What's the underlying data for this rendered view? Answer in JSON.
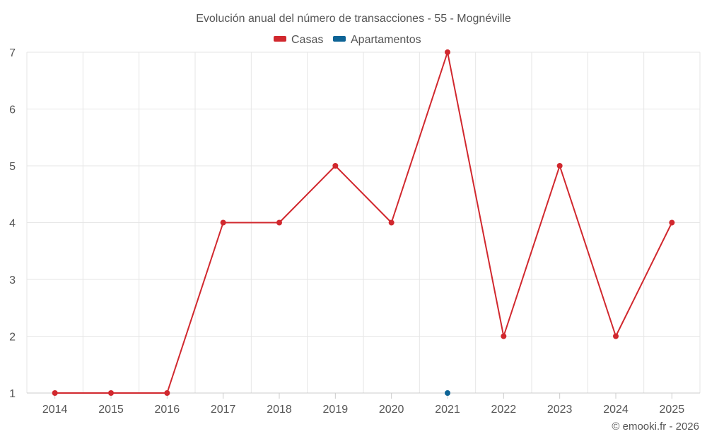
{
  "chart_data": {
    "type": "line",
    "title": "Evolución anual del número de transacciones - 55 - Mognéville",
    "categories": [
      "2014",
      "2015",
      "2016",
      "2017",
      "2018",
      "2019",
      "2020",
      "2021",
      "2022",
      "2023",
      "2024",
      "2025"
    ],
    "series": [
      {
        "name": "Casas",
        "color": "#d1282e",
        "values": [
          1,
          1,
          1,
          4,
          4,
          5,
          4,
          7,
          2,
          5,
          2,
          4
        ]
      },
      {
        "name": "Apartamentos",
        "color": "#0e6496",
        "values": [
          null,
          null,
          null,
          null,
          null,
          null,
          null,
          1,
          null,
          null,
          null,
          null
        ]
      }
    ],
    "ylim": [
      1,
      7
    ],
    "yticks": [
      "1",
      "2",
      "3",
      "4",
      "5",
      "6",
      "7"
    ],
    "xlabel": "",
    "ylabel": "",
    "grid": true,
    "legend": "top-center"
  },
  "credit": "© emooki.fr - 2026"
}
